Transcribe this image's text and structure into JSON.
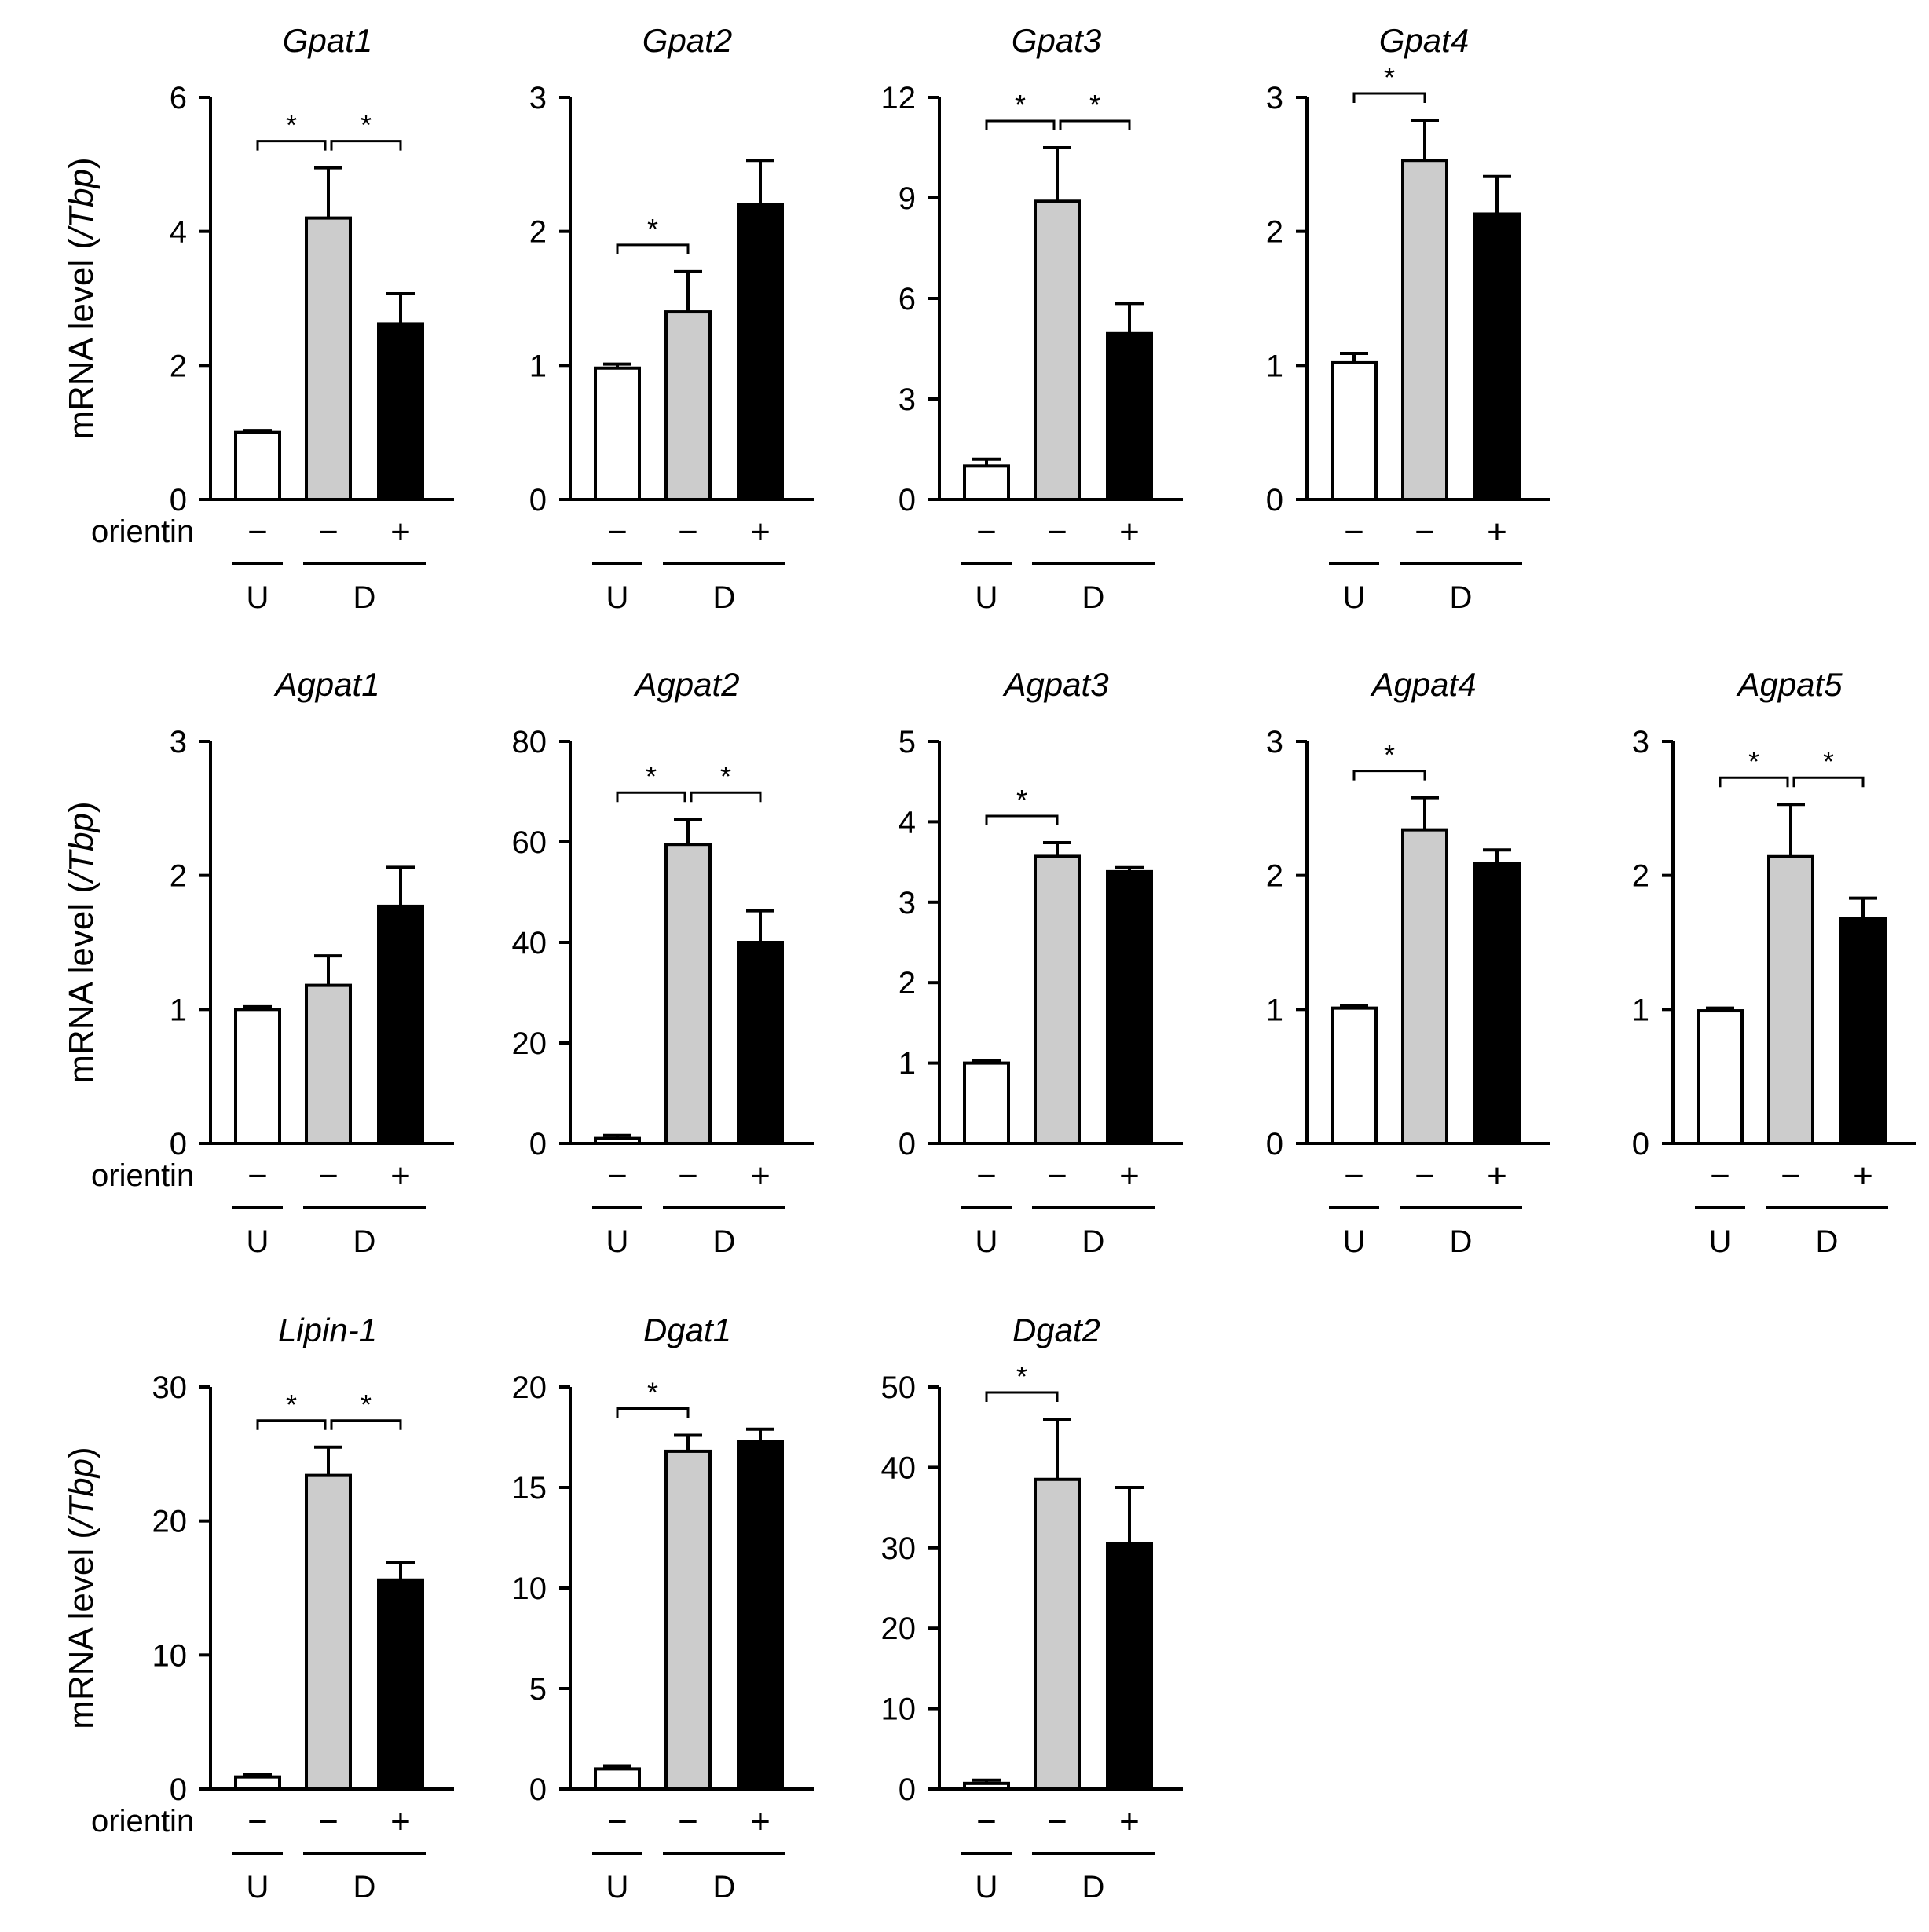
{
  "figure": {
    "ylabel_prefix": "mRNA level (",
    "ylabel_italic": "/Tbp",
    "ylabel_suffix": ")",
    "row_label": "orientin",
    "signs": [
      "−",
      "−",
      "+"
    ],
    "groups": [
      "U",
      "D"
    ],
    "star": "*",
    "colors": {
      "U": "#ffffff",
      "D": "#cccccc",
      "orientin": "#000000",
      "stroke": "#000000"
    }
  },
  "chart_data": [
    {
      "type": "bar",
      "title": "Gpat1",
      "categories": [
        "U −",
        "D −",
        "D +"
      ],
      "values": [
        1.0,
        4.2,
        2.62
      ],
      "errors": [
        0.03,
        0.75,
        0.45
      ],
      "ylim": [
        0,
        6
      ],
      "yticks": [
        0,
        2,
        4,
        6
      ],
      "significance": [
        [
          0,
          1
        ],
        [
          1,
          2
        ]
      ]
    },
    {
      "type": "bar",
      "title": "Gpat2",
      "categories": [
        "U −",
        "D −",
        "D +"
      ],
      "values": [
        0.98,
        1.4,
        2.2
      ],
      "errors": [
        0.03,
        0.3,
        0.33
      ],
      "ylim": [
        0,
        3
      ],
      "yticks": [
        0,
        1,
        2,
        3
      ],
      "significance": [
        [
          0,
          1
        ]
      ]
    },
    {
      "type": "bar",
      "title": "Gpat3",
      "categories": [
        "U −",
        "D −",
        "D +"
      ],
      "values": [
        1.0,
        8.9,
        4.95
      ],
      "errors": [
        0.2,
        1.6,
        0.9
      ],
      "ylim": [
        0,
        12
      ],
      "yticks": [
        0,
        3,
        6,
        9,
        12
      ],
      "significance": [
        [
          0,
          1
        ],
        [
          1,
          2
        ]
      ]
    },
    {
      "type": "bar",
      "title": "Gpat4",
      "categories": [
        "U −",
        "D −",
        "D +"
      ],
      "values": [
        1.02,
        2.53,
        2.13
      ],
      "errors": [
        0.07,
        0.3,
        0.28
      ],
      "ylim": [
        0,
        3
      ],
      "yticks": [
        0,
        1,
        2,
        3
      ],
      "significance": [
        [
          0,
          1
        ]
      ]
    },
    {
      "type": "bar",
      "title": "Agpat1",
      "categories": [
        "U −",
        "D −",
        "D +"
      ],
      "values": [
        1.0,
        1.18,
        1.77
      ],
      "errors": [
        0.02,
        0.22,
        0.29
      ],
      "ylim": [
        0,
        3
      ],
      "yticks": [
        0,
        1,
        2,
        3
      ],
      "significance": []
    },
    {
      "type": "bar",
      "title": "Agpat2",
      "categories": [
        "U −",
        "D −",
        "D +"
      ],
      "values": [
        1.0,
        59.5,
        40.0
      ],
      "errors": [
        0.6,
        5.0,
        6.3
      ],
      "ylim": [
        0,
        80
      ],
      "yticks": [
        0,
        20,
        40,
        60,
        80
      ],
      "significance": [
        [
          0,
          1
        ],
        [
          1,
          2
        ]
      ]
    },
    {
      "type": "bar",
      "title": "Agpat3",
      "categories": [
        "U −",
        "D −",
        "D +"
      ],
      "values": [
        1.0,
        3.57,
        3.38
      ],
      "errors": [
        0.03,
        0.17,
        0.05
      ],
      "ylim": [
        0,
        5
      ],
      "yticks": [
        0,
        1,
        2,
        3,
        4,
        5
      ],
      "significance": [
        [
          0,
          1
        ]
      ]
    },
    {
      "type": "bar",
      "title": "Agpat4",
      "categories": [
        "U −",
        "D −",
        "D +"
      ],
      "values": [
        1.01,
        2.34,
        2.09
      ],
      "errors": [
        0.02,
        0.24,
        0.1
      ],
      "ylim": [
        0,
        3
      ],
      "yticks": [
        0,
        1,
        2,
        3
      ],
      "significance": [
        [
          0,
          1
        ]
      ]
    },
    {
      "type": "bar",
      "title": "Agpat5",
      "categories": [
        "U −",
        "D −",
        "D +"
      ],
      "values": [
        0.99,
        2.14,
        1.68
      ],
      "errors": [
        0.02,
        0.39,
        0.15
      ],
      "ylim": [
        0,
        3
      ],
      "yticks": [
        0,
        1,
        2,
        3
      ],
      "significance": [
        [
          0,
          1
        ],
        [
          1,
          2
        ]
      ]
    },
    {
      "type": "bar",
      "title": "Lipin-1",
      "categories": [
        "U −",
        "D −",
        "D +"
      ],
      "values": [
        0.9,
        23.4,
        15.6
      ],
      "errors": [
        0.2,
        2.1,
        1.3
      ],
      "ylim": [
        0,
        30
      ],
      "yticks": [
        0,
        10,
        20,
        30
      ],
      "significance": [
        [
          0,
          1
        ],
        [
          1,
          2
        ]
      ]
    },
    {
      "type": "bar",
      "title": "Dgat1",
      "categories": [
        "U −",
        "D −",
        "D +"
      ],
      "values": [
        1.0,
        16.8,
        17.3
      ],
      "errors": [
        0.15,
        0.8,
        0.6
      ],
      "ylim": [
        0,
        20
      ],
      "yticks": [
        0,
        5,
        10,
        15,
        20
      ],
      "significance": [
        [
          0,
          1
        ]
      ]
    },
    {
      "type": "bar",
      "title": "Dgat2",
      "categories": [
        "U −",
        "D −",
        "D +"
      ],
      "values": [
        0.7,
        38.5,
        30.5
      ],
      "errors": [
        0.4,
        7.5,
        7.0
      ],
      "ylim": [
        0,
        50
      ],
      "yticks": [
        0,
        10,
        20,
        30,
        40,
        50
      ],
      "significance": [
        [
          0,
          1
        ]
      ]
    }
  ]
}
